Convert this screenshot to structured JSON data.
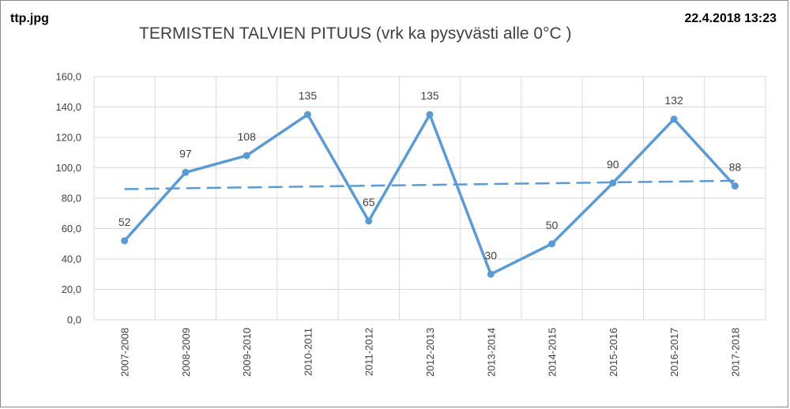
{
  "header": {
    "filename": "ttp.jpg",
    "timestamp": "22.4.2018  13:23"
  },
  "chart_data": {
    "type": "line",
    "title": "TERMISTEN TALVIEN PITUUS (vrk ka pysyvästi alle 0°C )",
    "categories": [
      "2007-2008",
      "2008-2009",
      "2009-2010",
      "2010-2011",
      "2011-2012",
      "2012-2013",
      "2013-2014",
      "2014-2015",
      "2015-2016",
      "2016-2017",
      "2017-2018"
    ],
    "series": [
      {
        "values": [
          52,
          97,
          108,
          135,
          65,
          135,
          30,
          50,
          90,
          132,
          88
        ],
        "color": "#5b9bd5",
        "data_labels": [
          "52",
          "97",
          "108",
          "135",
          "65",
          "135",
          "30",
          "50",
          "90",
          "132",
          "88"
        ]
      }
    ],
    "trendline": {
      "type": "linear",
      "style": "dashed",
      "color": "#5b9bd5",
      "start": 86,
      "end": 91.5
    },
    "yticks": [
      "0,0",
      "20,0",
      "40,0",
      "60,0",
      "80,0",
      "100,0",
      "120,0",
      "140,0",
      "160,0"
    ],
    "ylim": [
      0,
      160
    ],
    "xlabel": "",
    "ylabel": "",
    "grid": true,
    "legend": "none"
  }
}
